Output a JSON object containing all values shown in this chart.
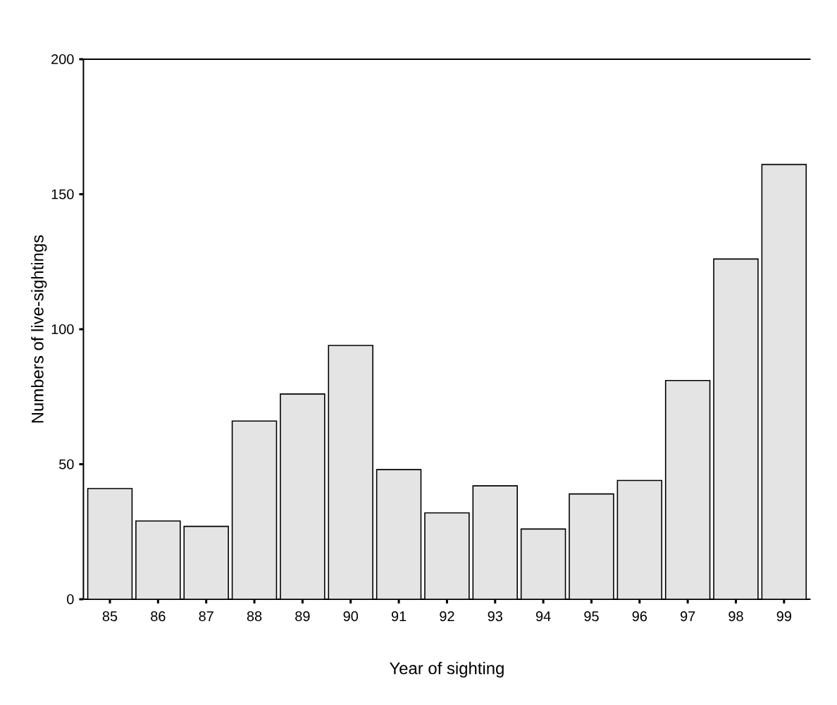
{
  "chart_data": {
    "type": "bar",
    "xlabel": "Year of sighting",
    "ylabel": "Numbers of live-sightings",
    "categories": [
      "85",
      "86",
      "87",
      "88",
      "89",
      "90",
      "91",
      "92",
      "93",
      "94",
      "95",
      "96",
      "97",
      "98",
      "99"
    ],
    "values": [
      41,
      29,
      27,
      66,
      76,
      94,
      48,
      32,
      42,
      26,
      39,
      44,
      81,
      126,
      161
    ],
    "color": "#e4e4e4",
    "ylim": [
      0,
      200
    ],
    "yticks": [
      0,
      50,
      100,
      150,
      200
    ]
  }
}
